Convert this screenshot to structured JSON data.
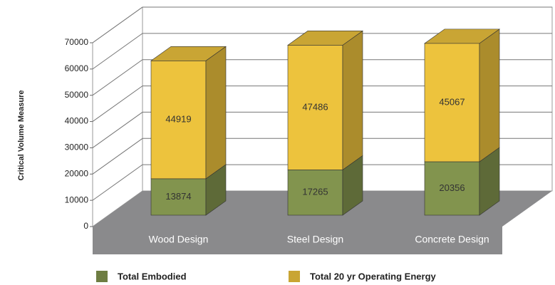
{
  "chart_data": {
    "type": "bar3d_stacked",
    "y_label": "Critical Volume Measure",
    "categories": [
      "Wood Design",
      "Steel Design",
      "Concrete Design"
    ],
    "series": [
      {
        "name": "Total Embodied",
        "color": "#6e7d42",
        "values": [
          13874,
          17265,
          20356
        ]
      },
      {
        "name": "Total 20 yr Operating Energy",
        "color": "#c9a534",
        "values": [
          44919,
          47486,
          45067
        ]
      }
    ],
    "ylim": [
      0,
      70000
    ],
    "yticks": [
      0,
      10000,
      20000,
      30000,
      40000,
      50000,
      60000,
      70000
    ],
    "grid": true
  }
}
